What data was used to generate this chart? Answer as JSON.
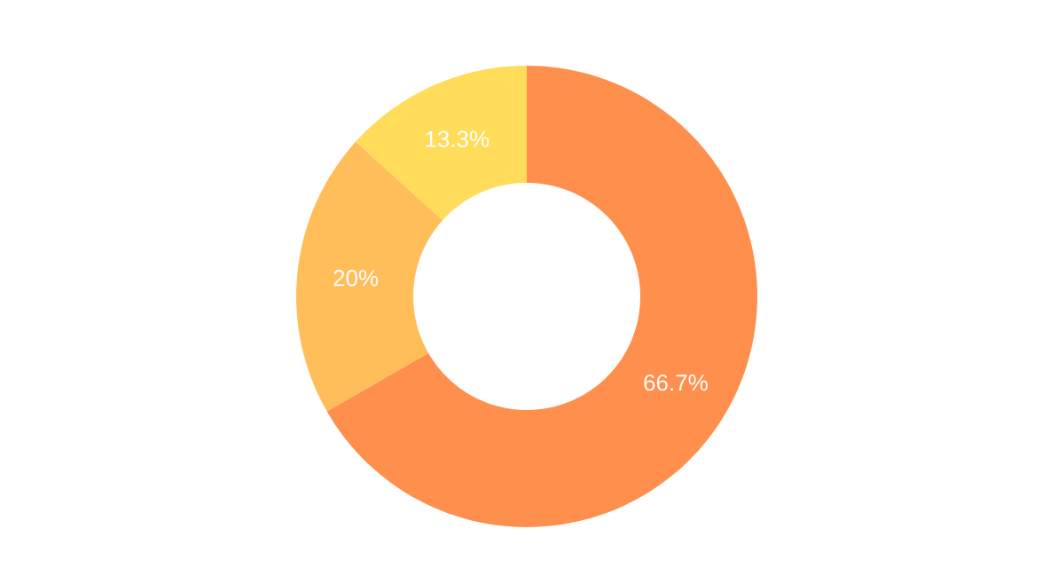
{
  "chart_data": {
    "type": "donut",
    "categories": [
      null,
      null,
      null
    ],
    "values": [
      66.7,
      20,
      13.3
    ],
    "colors": [
      "#ff8f4c",
      "#ffbe5a",
      "#ffdc5a"
    ],
    "value_labels": [
      "66.7%",
      "20%",
      "13.3%"
    ]
  }
}
